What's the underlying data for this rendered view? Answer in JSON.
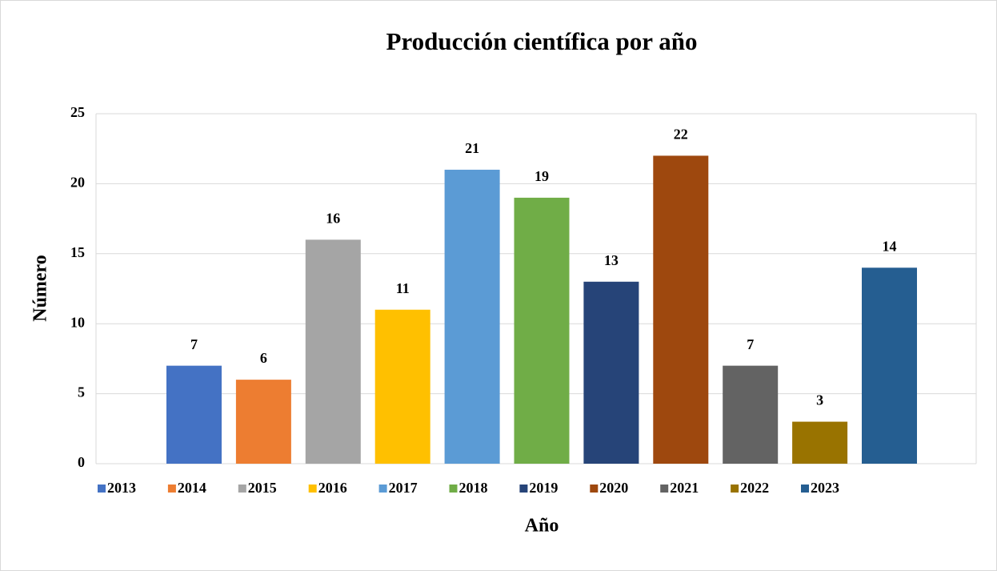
{
  "chart_data": {
    "type": "bar",
    "title": "Producción científica por año",
    "x_label": "Año",
    "y_label": "Número",
    "ylim": [
      0,
      25
    ],
    "yticks": [
      0,
      5,
      10,
      15,
      20,
      25
    ],
    "grid": true,
    "legend": "bottom",
    "series": [
      {
        "name": "2013",
        "color": "#4472c4",
        "values": [
          7
        ]
      },
      {
        "name": "2014",
        "color": "#ed7d31",
        "values": [
          6
        ]
      },
      {
        "name": "2015",
        "color": "#a5a5a5",
        "values": [
          16
        ]
      },
      {
        "name": "2016",
        "color": "#ffc000",
        "values": [
          11
        ]
      },
      {
        "name": "2017",
        "color": "#5b9bd5",
        "values": [
          21
        ]
      },
      {
        "name": "2018",
        "color": "#70ad47",
        "values": [
          19
        ]
      },
      {
        "name": "2019",
        "color": "#264478",
        "values": [
          13
        ]
      },
      {
        "name": "2020",
        "color": "#9e480e",
        "values": [
          22
        ]
      },
      {
        "name": "2021",
        "color": "#636363",
        "values": [
          7
        ]
      },
      {
        "name": "2022",
        "color": "#997300",
        "values": [
          3
        ]
      },
      {
        "name": "2023",
        "color": "#255e91",
        "values": [
          14
        ]
      }
    ]
  }
}
